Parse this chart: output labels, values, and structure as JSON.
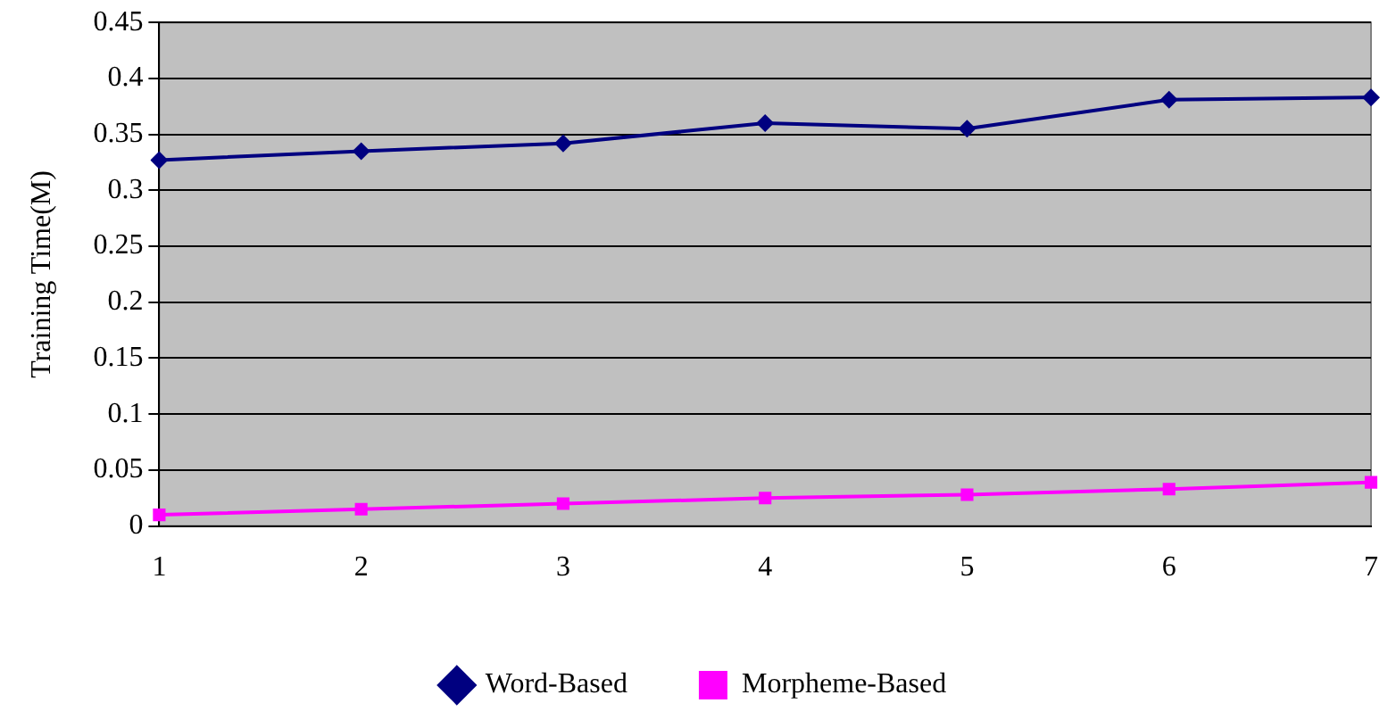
{
  "chart_data": {
    "type": "line",
    "ylabel": "Training Time(M)",
    "categories": [
      "1",
      "2",
      "3",
      "4",
      "5",
      "6",
      "7"
    ],
    "series": [
      {
        "name": "Word-Based",
        "color": "#000080",
        "marker": "diamond",
        "values": [
          0.327,
          0.335,
          0.342,
          0.36,
          0.355,
          0.381,
          0.383
        ]
      },
      {
        "name": "Morpheme-Based",
        "color": "#ff00ff",
        "marker": "square",
        "values": [
          0.01,
          0.015,
          0.02,
          0.025,
          0.028,
          0.033,
          0.039
        ]
      }
    ],
    "ylim": [
      0,
      0.45
    ],
    "yticks": [
      0,
      0.05,
      0.1,
      0.15,
      0.2,
      0.25,
      0.3,
      0.35,
      0.4,
      0.45
    ],
    "grid": "y",
    "legend": "bottom",
    "line_style": "solid"
  }
}
